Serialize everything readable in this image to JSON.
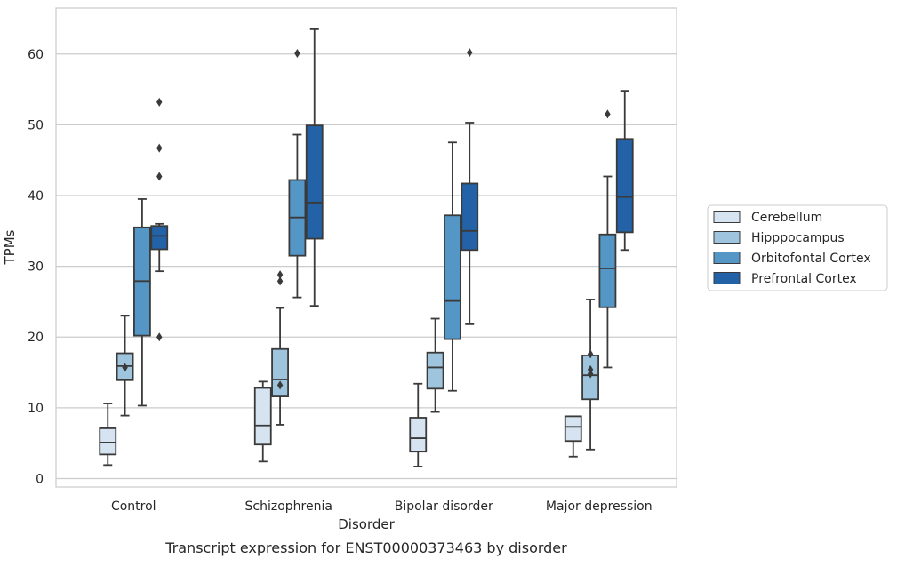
{
  "chart_data": {
    "type": "box",
    "title": "",
    "caption": "Transcript expression for ENST00000373463 by disorder",
    "xlabel": "Disorder",
    "ylabel": "TPMs",
    "ylim": [
      -1.2,
      66.5
    ],
    "yticks": [
      0,
      10,
      20,
      30,
      40,
      50,
      60
    ],
    "grid": "horizontal",
    "legend_position": "right",
    "categories": [
      "Control",
      "Schizophrenia",
      "Bipolar disorder",
      "Major depression"
    ],
    "series": [
      {
        "name": "Cerebellum",
        "color": "#d6e4f1",
        "boxes": [
          {
            "whisker_low": 1.9,
            "q1": 3.4,
            "median": 5.1,
            "q3": 7.1,
            "whisker_high": 10.6,
            "outliers": []
          },
          {
            "whisker_low": 2.4,
            "q1": 4.8,
            "median": 7.5,
            "q3": 12.8,
            "whisker_high": 13.7,
            "outliers": []
          },
          {
            "whisker_low": 1.7,
            "q1": 3.8,
            "median": 5.7,
            "q3": 8.6,
            "whisker_high": 13.4,
            "outliers": []
          },
          {
            "whisker_low": 3.1,
            "q1": 5.3,
            "median": 7.3,
            "q3": 8.8,
            "whisker_high": 8.8,
            "outliers": []
          }
        ]
      },
      {
        "name": "Hipppocampus",
        "color": "#9ec5dd",
        "boxes": [
          {
            "whisker_low": 8.9,
            "q1": 13.9,
            "median": 15.9,
            "q3": 17.7,
            "whisker_high": 23.0,
            "outliers": [
              15.7
            ]
          },
          {
            "whisker_low": 7.6,
            "q1": 11.6,
            "median": 14.0,
            "q3": 18.3,
            "whisker_high": 24.1,
            "outliers": [
              13.2,
              27.9,
              28.8
            ]
          },
          {
            "whisker_low": 9.4,
            "q1": 12.7,
            "median": 15.7,
            "q3": 17.8,
            "whisker_high": 22.6,
            "outliers": []
          },
          {
            "whisker_low": 4.1,
            "q1": 11.2,
            "median": 14.6,
            "q3": 17.4,
            "whisker_high": 25.3,
            "outliers": [
              14.8,
              15.4,
              17.6
            ]
          }
        ]
      },
      {
        "name": "Orbitofontal Cortex",
        "color": "#5497c7",
        "boxes": [
          {
            "whisker_low": 10.3,
            "q1": 20.2,
            "median": 27.9,
            "q3": 35.5,
            "whisker_high": 39.5,
            "outliers": []
          },
          {
            "whisker_low": 25.6,
            "q1": 31.5,
            "median": 36.9,
            "q3": 42.2,
            "whisker_high": 48.6,
            "outliers": [
              60.1
            ]
          },
          {
            "whisker_low": 12.4,
            "q1": 19.7,
            "median": 25.1,
            "q3": 37.2,
            "whisker_high": 47.5,
            "outliers": []
          },
          {
            "whisker_low": 15.7,
            "q1": 24.2,
            "median": 29.7,
            "q3": 34.5,
            "whisker_high": 42.7,
            "outliers": [
              51.5
            ]
          }
        ]
      },
      {
        "name": "Prefrontal Cortex",
        "color": "#2362a6",
        "boxes": [
          {
            "whisker_low": 29.3,
            "q1": 32.4,
            "median": 34.3,
            "q3": 35.7,
            "whisker_high": 36.0,
            "outliers": [
              20.0,
              42.7,
              46.7,
              53.2
            ]
          },
          {
            "whisker_low": 24.4,
            "q1": 33.9,
            "median": 39.0,
            "q3": 49.9,
            "whisker_high": 63.5,
            "outliers": []
          },
          {
            "whisker_low": 21.8,
            "q1": 32.3,
            "median": 35.0,
            "q3": 41.7,
            "whisker_high": 50.3,
            "outliers": [
              60.2
            ]
          },
          {
            "whisker_low": 32.3,
            "q1": 34.8,
            "median": 39.8,
            "q3": 48.0,
            "whisker_high": 54.8,
            "outliers": []
          }
        ]
      }
    ]
  }
}
